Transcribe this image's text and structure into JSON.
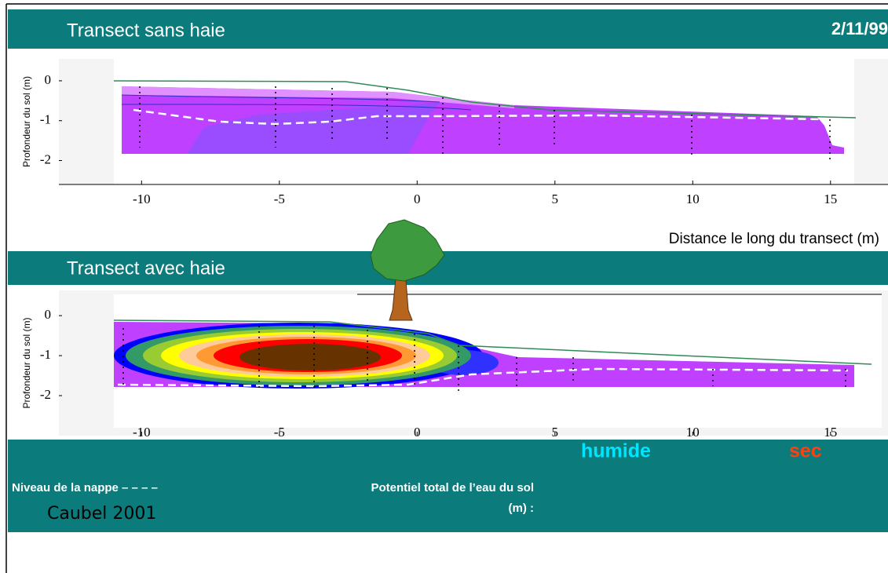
{
  "chart_data": [
    {
      "type": "contour",
      "title": "Transect sans haie",
      "subtitle": "2/11/99",
      "ylabel": "Profondeur du  sol (m)",
      "xlabel": "Distance le long du transect (m)",
      "xlim": [
        -13,
        17
      ],
      "ylim": [
        -2.6,
        0.55
      ],
      "xticks": [
        -10,
        -5,
        0,
        5,
        10,
        15
      ],
      "yticks": [
        0,
        -1,
        -2
      ]
    },
    {
      "type": "contour",
      "title": "Transect avec haie",
      "ylabel": "Profondeur du sol (m)",
      "xlim": [
        -13,
        17
      ],
      "ylim": [
        -3,
        0.63
      ],
      "xticks": [
        -10,
        -5,
        0,
        5,
        10,
        15
      ],
      "yticks": [
        0,
        -1,
        -2
      ]
    }
  ],
  "legend": {
    "water_table_label": "Niveau de la nappe – – – –",
    "credit": "Caubel 2001",
    "colorbar_title": "Potentiel total de l’eau du sol",
    "colorbar_unit": "(m) :",
    "low_label": "humide",
    "high_label": "sec",
    "levels": [
      0,
      -0.25,
      0.5,
      0.75,
      -1,
      -1.5,
      -2,
      -3,
      -4,
      -5,
      -6,
      -7,
      -8,
      -9,
      -10
    ],
    "colors": [
      "#ffffff",
      "#f0c8ff",
      "#e0a0ff",
      "#d080ff",
      "#c040ff",
      "#a040ff",
      "#8030ff",
      "#5a28ff",
      "#0000ff",
      "#339966",
      "#99cc33",
      "#ffff00",
      "#ffcc99",
      "#ff9933",
      "#ff0000",
      "#663300"
    ]
  }
}
